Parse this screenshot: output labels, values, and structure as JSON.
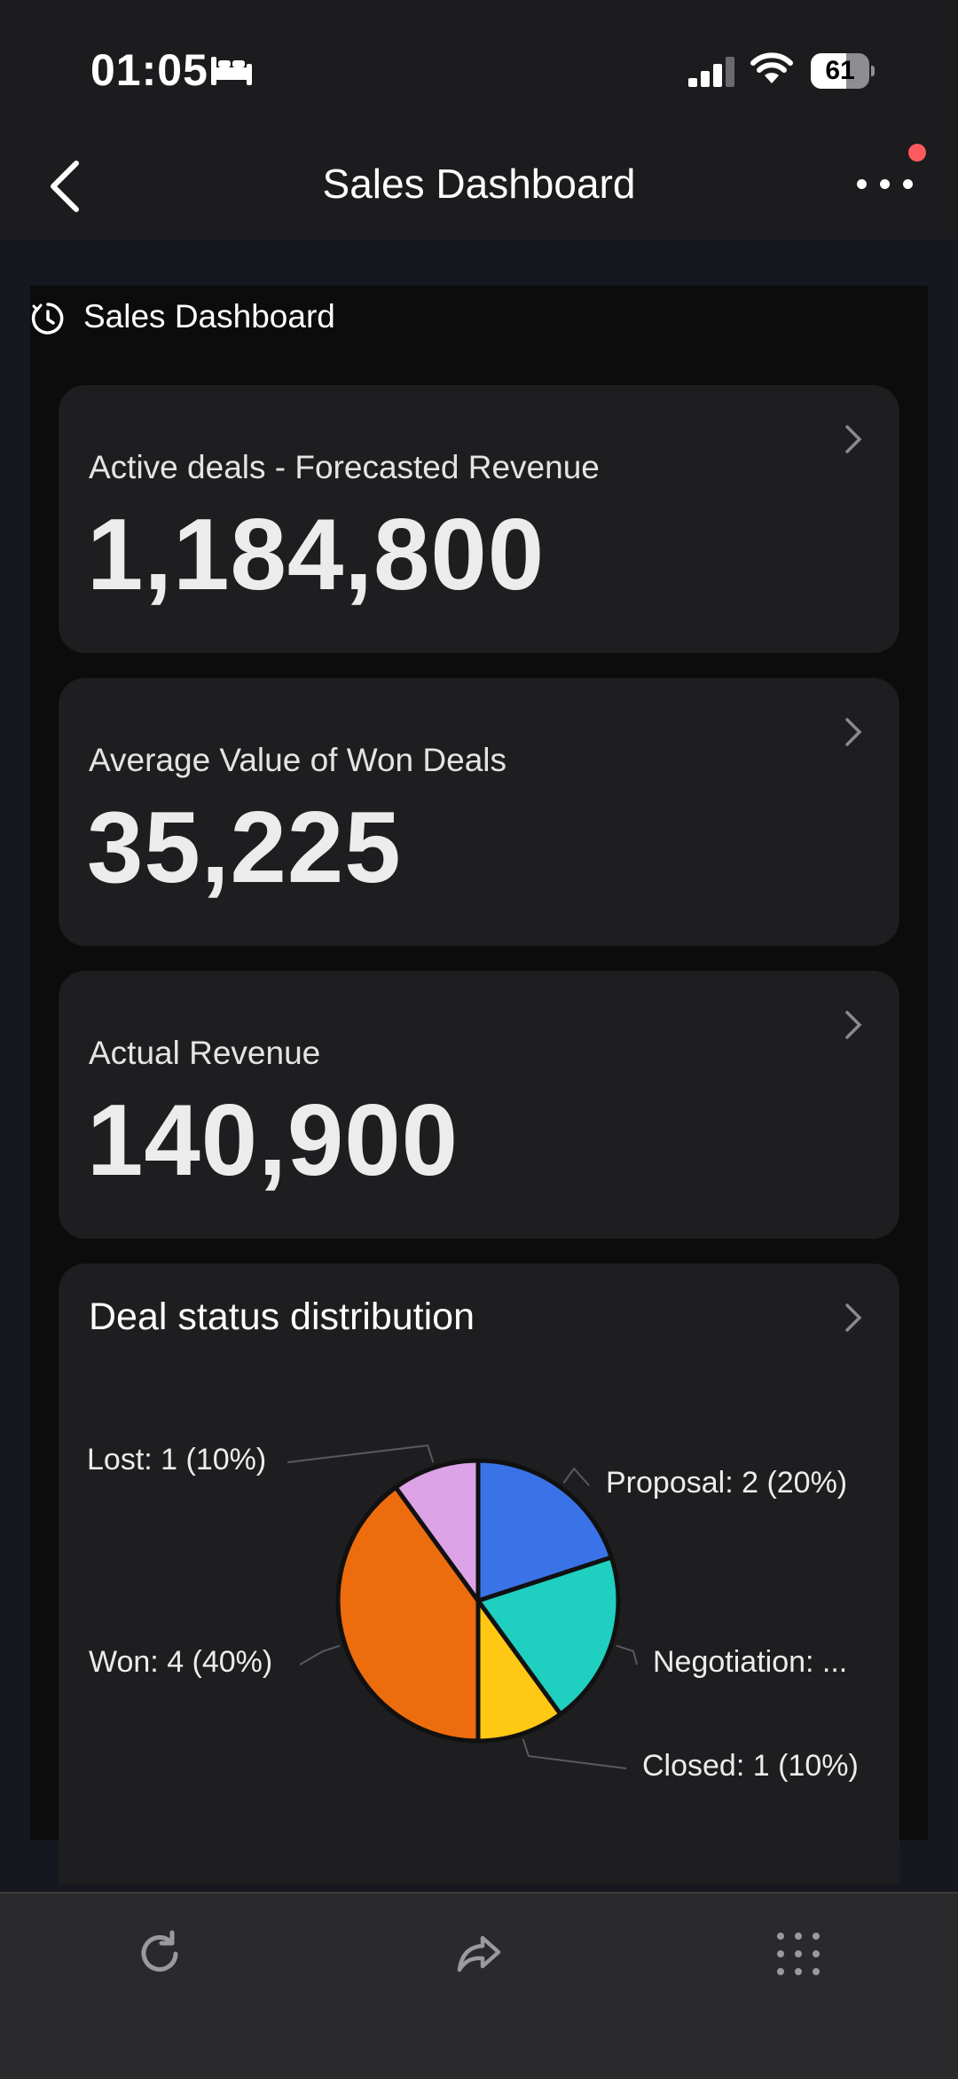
{
  "status_bar": {
    "time": "01:05",
    "battery_level": "61",
    "icons": [
      "bed-icon",
      "cellular-signal-icon",
      "wifi-icon",
      "battery-icon"
    ]
  },
  "nav": {
    "title": "Sales Dashboard",
    "back_icon": "chevron-left-icon",
    "more_icon": "more-horizontal-icon",
    "notification_dot_color": "#ff5a5f"
  },
  "dashboard": {
    "title": "Sales Dashboard",
    "icon": "clock-refresh-icon"
  },
  "cards": [
    {
      "label": "Active deals - Forecasted Revenue",
      "value": "1,184,800"
    },
    {
      "label": "Average Value of Won Deals",
      "value": "35,225"
    },
    {
      "label": "Actual Revenue",
      "value": "140,900"
    }
  ],
  "chart_card": {
    "title": "Deal status distribution"
  },
  "chart_data": {
    "type": "pie",
    "title": "Deal status distribution",
    "slices": [
      {
        "name": "Proposal",
        "value": 2,
        "percent": 20,
        "label": "Proposal: 2 (20%)",
        "color": "#3a73e8"
      },
      {
        "name": "Negotiation",
        "value": 2,
        "percent": 20,
        "label": "Negotiation: ...",
        "color": "#1fcfc0"
      },
      {
        "name": "Closed",
        "value": 1,
        "percent": 10,
        "label": "Closed: 1 (10%)",
        "color": "#ffc814"
      },
      {
        "name": "Won",
        "value": 4,
        "percent": 40,
        "label": "Won: 4 (40%)",
        "color": "#ec6c0e"
      },
      {
        "name": "Lost",
        "value": 1,
        "percent": 10,
        "label": "Lost: 1 (10%)",
        "color": "#dca3e6"
      }
    ]
  },
  "bottom_bar": {
    "buttons": [
      "refresh-icon",
      "share-icon",
      "apps-grid-icon"
    ]
  }
}
